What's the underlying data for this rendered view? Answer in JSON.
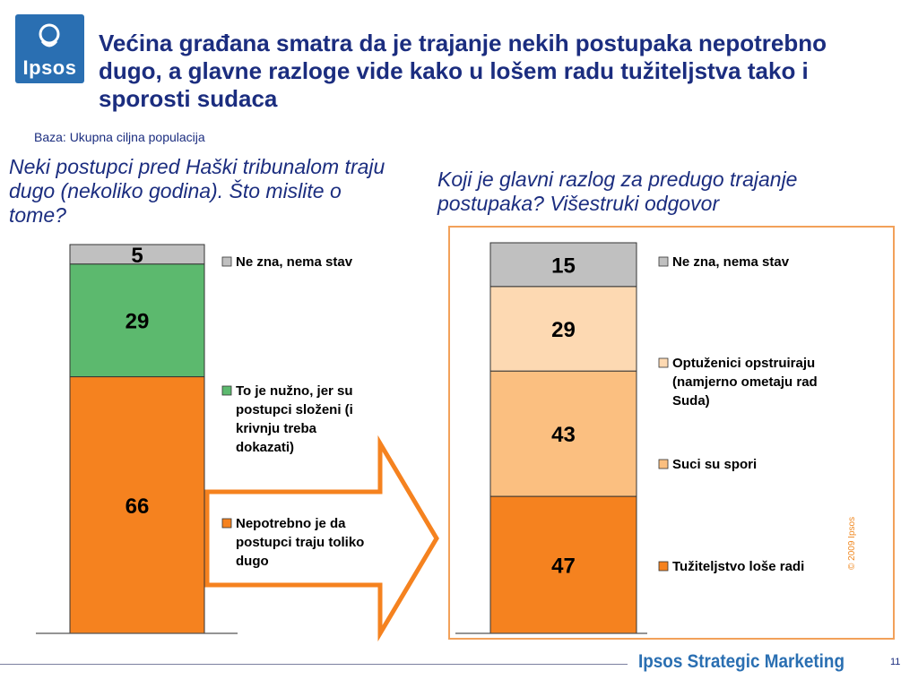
{
  "logo": {
    "text": "Ipsos"
  },
  "title": "Većina građana smatra da je trajanje nekih postupaka nepotrebno dugo, a glavne razloge vide kako u lošem radu tužiteljstva tako i sporosti sudaca",
  "base_note": "Baza: Ukupna ciljna populacija",
  "question_left": "Neki postupci pred Haški tribunalom traju dugo (nekoliko godina). Što mislite o tome?",
  "question_right": "Koji je glavni razlog za predugo trajanje postupaka? Višestruki odgovor",
  "copyright": "© 2009 Ipsos",
  "footer": {
    "brand": "Ipsos Strategic Marketing",
    "page_number": "11"
  },
  "chart_data": [
    {
      "type": "bar",
      "stacked": true,
      "categories": [
        ""
      ],
      "series": [
        {
          "name": "Nepotrebno je da postupci traju toliko dugo",
          "values": [
            66
          ],
          "color": "#f5821f"
        },
        {
          "name": "To je nužno, jer su postupci složeni (i krivnju treba dokazati)",
          "values": [
            29
          ],
          "color": "#5cb96e"
        },
        {
          "name": "Ne zna, nema stav",
          "values": [
            5
          ],
          "color": "#c0c0c0"
        }
      ],
      "ylim": [
        0,
        100
      ],
      "legend": "right"
    },
    {
      "type": "bar",
      "stacked": true,
      "categories": [
        ""
      ],
      "series": [
        {
          "name": "Tužiteljstvo loše radi",
          "values": [
            47
          ],
          "color": "#f5821f"
        },
        {
          "name": "Suci su spori",
          "values": [
            43
          ],
          "color": "#fbbf80"
        },
        {
          "name": "Optuženici opstruiraju (namjerno ometaju rad Suda)",
          "values": [
            29
          ],
          "color": "#fdd9b2"
        },
        {
          "name": "Ne zna, nema stav",
          "values": [
            15
          ],
          "color": "#c0c0c0"
        }
      ],
      "legend": "right"
    }
  ]
}
